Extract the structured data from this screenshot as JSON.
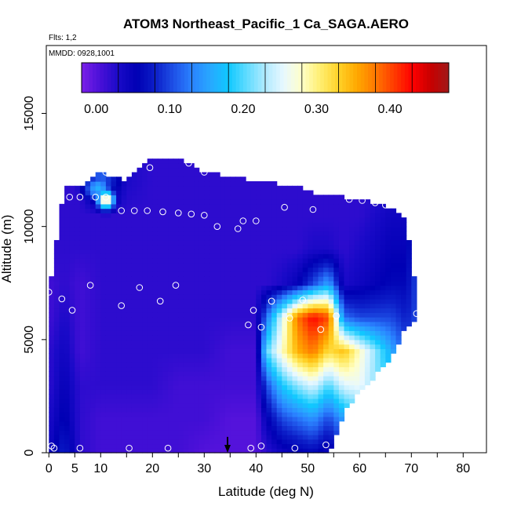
{
  "chart_data": {
    "type": "heatmap",
    "title": "ATOM3 Northeast_Pacific_1 Ca_SAGA.AERO",
    "flights_label": "Flts: 1,2",
    "dates_label": "MMDD: 0928,1001",
    "xlabel": "Latitude (deg N)",
    "ylabel": "Altitude (m)",
    "xlim": [
      -0.5,
      84.5
    ],
    "ylim": [
      0,
      18000
    ],
    "x_ticks": [
      0,
      5,
      10,
      20,
      30,
      40,
      50,
      60,
      70,
      80
    ],
    "x_tick_labels": [
      "0",
      "5",
      "10",
      "20",
      "30",
      "40",
      "50",
      "60",
      "70",
      "80"
    ],
    "x_minor_ticks": [
      15,
      25,
      35,
      45,
      55,
      65,
      75
    ],
    "y_ticks": [
      0,
      5000,
      10000,
      15000
    ],
    "y_tick_labels": [
      "0",
      "5000",
      "10000",
      "15000"
    ],
    "colorbar": {
      "range": [
        -0.02,
        0.48
      ],
      "tick_values": [
        0,
        0.1,
        0.2,
        0.3,
        0.4
      ],
      "tick_labels": [
        "0.00",
        "0.10",
        "0.20",
        "0.30",
        "0.40"
      ],
      "colors": [
        "#7a1fe8",
        "#4a10d8",
        "#1a0ac8",
        "#0000b4",
        "#0c1ec8",
        "#1e50e6",
        "#2a82ff",
        "#28a8ff",
        "#10c8ff",
        "#60dcff",
        "#b0eaff",
        "#e8f8ff",
        "#ffffc8",
        "#ffee70",
        "#ffd228",
        "#ffa800",
        "#ff7800",
        "#ff3c00",
        "#ff0000",
        "#c80000",
        "#a01818"
      ]
    },
    "field_profiles": [
      {
        "lat": 0,
        "altMin": 0,
        "altMax": 7100,
        "values": [
          0.04,
          0.03,
          0.02,
          0.02,
          0.01,
          0.01,
          0.02,
          0.02,
          0.02
        ]
      },
      {
        "lat": 3,
        "altMin": 0,
        "altMax": 11800,
        "values": [
          0.08,
          0.06,
          0.05,
          0.04,
          0.03,
          0.02,
          0.02,
          0.02,
          0.02
        ]
      },
      {
        "lat": 6,
        "altMin": 0,
        "altMax": 11800,
        "values": [
          0.02,
          0.02,
          0.02,
          0.01,
          0.01,
          0.01,
          0.02,
          0.02,
          0.02
        ]
      },
      {
        "lat": 10,
        "altMin": 0,
        "altMax": 12400,
        "values": [
          0.01,
          0.01,
          0.02,
          0.02,
          0.02,
          0.02,
          0.02,
          0.02,
          0.12
        ]
      },
      {
        "lat": 15,
        "altMin": 0,
        "altMax": 12000,
        "values": [
          0.01,
          0.01,
          0.02,
          0.02,
          0.02,
          0.02,
          0.02,
          0.02,
          0.03
        ]
      },
      {
        "lat": 20,
        "altMin": 0,
        "altMax": 13000,
        "values": [
          0.01,
          0.01,
          0.02,
          0.02,
          0.02,
          0.02,
          0.02,
          0.02,
          0.02
        ]
      },
      {
        "lat": 25,
        "altMin": 0,
        "altMax": 13000,
        "values": [
          0.01,
          0.01,
          0.01,
          0.02,
          0.02,
          0.02,
          0.02,
          0.02,
          0.02
        ]
      },
      {
        "lat": 30,
        "altMin": 0,
        "altMax": 12400,
        "values": [
          0.0,
          0.01,
          0.01,
          0.02,
          0.02,
          0.02,
          0.02,
          0.02,
          0.02
        ]
      },
      {
        "lat": 35,
        "altMin": 0,
        "altMax": 12200,
        "values": [
          0.0,
          0.0,
          0.01,
          0.01,
          0.02,
          0.02,
          0.02,
          0.02,
          0.02
        ]
      },
      {
        "lat": 40,
        "altMin": 0,
        "altMax": 12000,
        "values": [
          0.0,
          0.0,
          0.01,
          0.01,
          0.02,
          0.02,
          0.02,
          0.02,
          0.02
        ]
      },
      {
        "lat": 42,
        "altMin": 0,
        "altMax": 12000,
        "values": [
          0.02,
          0.05,
          0.1,
          0.2,
          0.12,
          0.02,
          0.02,
          0.02,
          0.02
        ]
      },
      {
        "lat": 45,
        "altMin": 0,
        "altMax": 11800,
        "values": [
          0.04,
          0.1,
          0.18,
          0.28,
          0.25,
          0.03,
          0.02,
          0.02,
          0.02
        ]
      },
      {
        "lat": 48,
        "altMin": 0,
        "altMax": 11800,
        "values": [
          0.05,
          0.12,
          0.22,
          0.35,
          0.38,
          0.05,
          0.02,
          0.02,
          0.02
        ]
      },
      {
        "lat": 51,
        "altMin": 0,
        "altMax": 11500,
        "values": [
          0.06,
          0.14,
          0.25,
          0.38,
          0.43,
          0.1,
          0.03,
          0.02,
          0.02
        ]
      },
      {
        "lat": 54,
        "altMin": 0,
        "altMax": 11400,
        "values": [
          0.04,
          0.1,
          0.2,
          0.32,
          0.4,
          0.15,
          0.03,
          0.02,
          0.02
        ]
      },
      {
        "lat": 57,
        "altMin": 1800,
        "altMax": 11300,
        "values": [
          0.08,
          0.15,
          0.25,
          0.34,
          0.12,
          0.03,
          0.02,
          0.02,
          0.02
        ]
      },
      {
        "lat": 60,
        "altMin": 2800,
        "altMax": 11200,
        "values": [
          0.1,
          0.18,
          0.26,
          0.28,
          0.1,
          0.04,
          0.03,
          0.02,
          0.02
        ]
      },
      {
        "lat": 63,
        "altMin": 3400,
        "altMax": 11000,
        "values": [
          0.1,
          0.18,
          0.22,
          0.22,
          0.1,
          0.05,
          0.04,
          0.03,
          0.02
        ]
      },
      {
        "lat": 66,
        "altMin": 4200,
        "altMax": 10800,
        "values": [
          0.1,
          0.15,
          0.18,
          0.16,
          0.1,
          0.06,
          0.05,
          0.04,
          0.03
        ]
      },
      {
        "lat": 69,
        "altMin": 5600,
        "altMax": 10200,
        "values": [
          0.1,
          0.14,
          0.14,
          0.1,
          0.08,
          0.06,
          0.05,
          0.04,
          0.04
        ]
      },
      {
        "lat": 71,
        "altMin": 6000,
        "altMax": 7000,
        "values": [
          0.14,
          0.14,
          0.14,
          0.12,
          0.1,
          0.1,
          0.1,
          0.1,
          0.1
        ]
      }
    ],
    "hotspots": [
      {
        "lat": 11,
        "alt": 11200,
        "value": 0.3,
        "rlat": 1.8,
        "ralt": 450
      },
      {
        "lat": 9.5,
        "alt": 11700,
        "value": 0.16,
        "rlat": 3.0,
        "ralt": 600
      }
    ],
    "flight_points": [
      {
        "lat": 0,
        "alt": 7100
      },
      {
        "lat": 2.5,
        "alt": 6800
      },
      {
        "lat": 4.5,
        "alt": 6300
      },
      {
        "lat": 8,
        "alt": 7400
      },
      {
        "lat": 14,
        "alt": 6500
      },
      {
        "lat": 17.5,
        "alt": 7300
      },
      {
        "lat": 21.5,
        "alt": 6700
      },
      {
        "lat": 24.5,
        "alt": 7400
      },
      {
        "lat": 2.5,
        "alt": 11900
      },
      {
        "lat": 4,
        "alt": 11300
      },
      {
        "lat": 6,
        "alt": 11300
      },
      {
        "lat": 9,
        "alt": 11300
      },
      {
        "lat": 11,
        "alt": 12400
      },
      {
        "lat": 11,
        "alt": 11300
      },
      {
        "lat": 14,
        "alt": 10700
      },
      {
        "lat": 16.5,
        "alt": 10700
      },
      {
        "lat": 19,
        "alt": 10700
      },
      {
        "lat": 19.5,
        "alt": 12600
      },
      {
        "lat": 22,
        "alt": 10650
      },
      {
        "lat": 25,
        "alt": 10600
      },
      {
        "lat": 27,
        "alt": 12800
      },
      {
        "lat": 27.5,
        "alt": 10550
      },
      {
        "lat": 30,
        "alt": 12400
      },
      {
        "lat": 30,
        "alt": 10500
      },
      {
        "lat": 32.5,
        "alt": 10000
      },
      {
        "lat": 36.5,
        "alt": 9900
      },
      {
        "lat": 37.5,
        "alt": 10250
      },
      {
        "lat": 40,
        "alt": 10250
      },
      {
        "lat": 45.5,
        "alt": 10850
      },
      {
        "lat": 51,
        "alt": 10750
      },
      {
        "lat": 58,
        "alt": 11200
      },
      {
        "lat": 60.5,
        "alt": 11150
      },
      {
        "lat": 63,
        "alt": 11050
      },
      {
        "lat": 65,
        "alt": 10950
      },
      {
        "lat": 68.5,
        "alt": 10900
      },
      {
        "lat": 38.5,
        "alt": 5650
      },
      {
        "lat": 39.5,
        "alt": 6300
      },
      {
        "lat": 41,
        "alt": 5550
      },
      {
        "lat": 43,
        "alt": 6700
      },
      {
        "lat": 46.5,
        "alt": 5950
      },
      {
        "lat": 49,
        "alt": 6750
      },
      {
        "lat": 52.5,
        "alt": 5450
      },
      {
        "lat": 55.5,
        "alt": 6050
      },
      {
        "lat": 71,
        "alt": 6150
      },
      {
        "lat": 0.5,
        "alt": 300
      },
      {
        "lat": 1,
        "alt": 200
      },
      {
        "lat": 6,
        "alt": 200
      },
      {
        "lat": 15.5,
        "alt": 200
      },
      {
        "lat": 23,
        "alt": 200
      },
      {
        "lat": 39,
        "alt": 200
      },
      {
        "lat": 41,
        "alt": 300
      },
      {
        "lat": 47.5,
        "alt": 200
      },
      {
        "lat": 53.5,
        "alt": 350
      }
    ],
    "marker_arrow": {
      "lat": 34.5,
      "alt_top": 700,
      "alt_bottom": 0
    }
  }
}
